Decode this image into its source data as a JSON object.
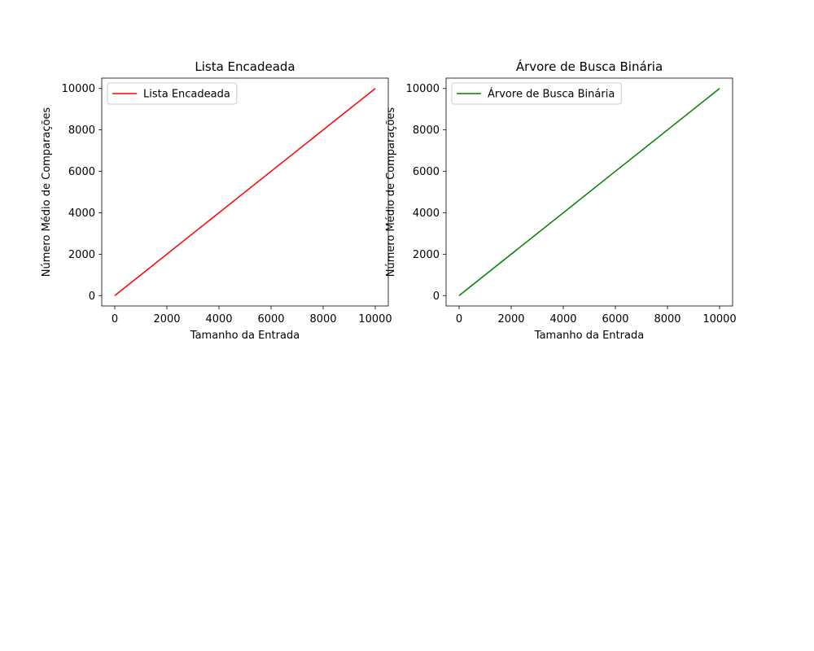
{
  "chart_data": [
    {
      "type": "line",
      "title": "Lista Encadeada",
      "xlabel": "Tamanho da Entrada",
      "ylabel": "Número Médio de Comparações",
      "xlim": [
        -500,
        10500
      ],
      "ylim": [
        -500,
        10500
      ],
      "x_ticks": [
        0,
        2000,
        4000,
        6000,
        8000,
        10000
      ],
      "y_ticks": [
        0,
        2000,
        4000,
        6000,
        8000,
        10000
      ],
      "grid": false,
      "legend_position": "upper-left",
      "series": [
        {
          "name": "Lista Encadeada",
          "color": "#ff0000",
          "x": [
            0,
            10000
          ],
          "y": [
            0,
            10000
          ]
        }
      ]
    },
    {
      "type": "line",
      "title": "Árvore de Busca Binária",
      "xlabel": "Tamanho da Entrada",
      "ylabel": "Número Médio de Comparações",
      "xlim": [
        -500,
        10500
      ],
      "ylim": [
        -500,
        10500
      ],
      "x_ticks": [
        0,
        2000,
        4000,
        6000,
        8000,
        10000
      ],
      "y_ticks": [
        0,
        2000,
        4000,
        6000,
        8000,
        10000
      ],
      "grid": false,
      "legend_position": "upper-left",
      "series": [
        {
          "name": "Árvore de Busca Binária",
          "color": "#008000",
          "x": [
            0,
            10000
          ],
          "y": [
            0,
            10000
          ]
        }
      ]
    }
  ]
}
